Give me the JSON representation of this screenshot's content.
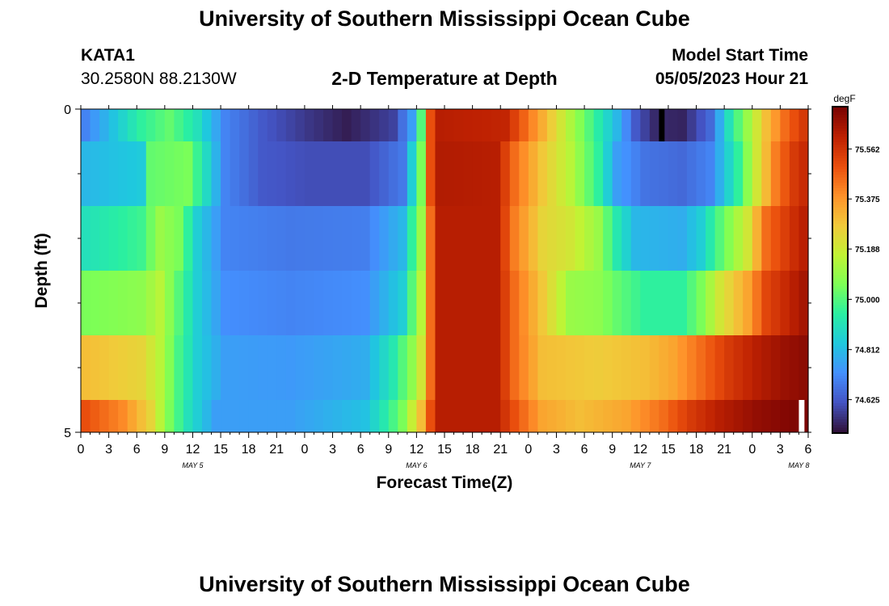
{
  "header": {
    "title": "University of Southern Mississippi Ocean Cube",
    "station": "KATA1",
    "coordinates": "30.2580N  88.2130W",
    "chart_title": "2-D Temperature at Depth",
    "model_start_label": "Model Start Time",
    "model_start_value": "05/05/2023 Hour 21"
  },
  "footer": {
    "title": "University of Southern Mississippi Ocean Cube"
  },
  "colors": {
    "colormap": [
      "#30123b",
      "#4454c4",
      "#4490fe",
      "#1fc8de",
      "#29efa2",
      "#7dff56",
      "#c1f334",
      "#f1ca3a",
      "#fe922a",
      "#ea4f0d",
      "#be2102",
      "#7a0403"
    ]
  },
  "chart_data": {
    "type": "heatmap",
    "xlabel": "Forecast Time(Z)",
    "ylabel": "Depth (ft)",
    "x_start_hour": 0,
    "x_step_hours": 1,
    "x_ticks": [
      "0",
      "3",
      "6",
      "9",
      "12",
      "15",
      "18",
      "21",
      "0",
      "3",
      "6",
      "9",
      "12",
      "15",
      "18",
      "21",
      "0",
      "3",
      "6",
      "9",
      "12",
      "15",
      "18",
      "21",
      "0",
      "3",
      "6"
    ],
    "date_labels": [
      {
        "label": "MAY 5",
        "hour": 12
      },
      {
        "label": "MAY 6",
        "hour": 36
      },
      {
        "label": "MAY 7",
        "hour": 60
      },
      {
        "label": "MAY 8",
        "hour": 77
      }
    ],
    "y_ticks": [
      {
        "label": "0",
        "depth": 0
      },
      {
        "label": "5",
        "depth": 5
      }
    ],
    "ylim": [
      0,
      5
    ],
    "colorbar": {
      "unit": "degF",
      "min": 74.5,
      "max": 75.72,
      "ticks": [
        "75.562",
        "75.375",
        "75.188",
        "75.000",
        "74.812",
        "74.625"
      ]
    },
    "layers": [
      {
        "depth_top": 0,
        "depth_bottom": 0.5,
        "keys": [
          [
            0,
            74.7
          ],
          [
            6,
            74.95
          ],
          [
            9,
            75.02
          ],
          [
            12,
            74.9
          ],
          [
            15,
            74.7
          ],
          [
            19,
            74.62
          ],
          [
            24,
            74.56
          ],
          [
            28,
            74.52
          ],
          [
            33,
            74.58
          ],
          [
            35,
            74.75
          ],
          [
            36,
            75.0
          ],
          [
            37,
            75.5
          ],
          [
            38,
            75.62
          ],
          [
            45,
            75.6
          ],
          [
            48,
            75.4
          ],
          [
            51,
            75.2
          ],
          [
            54,
            75.0
          ],
          [
            57,
            74.8
          ],
          [
            59,
            74.62
          ],
          [
            61,
            74.54
          ],
          [
            64,
            74.53
          ],
          [
            67,
            74.65
          ],
          [
            69,
            74.9
          ],
          [
            71,
            75.1
          ],
          [
            73,
            75.3
          ],
          [
            75,
            75.45
          ],
          [
            78,
            75.6
          ]
        ]
      },
      {
        "depth_top": 0.5,
        "depth_bottom": 1.5,
        "keys": [
          [
            0,
            74.8
          ],
          [
            6,
            74.84
          ],
          [
            7,
            75.02
          ],
          [
            11,
            75.05
          ],
          [
            13,
            74.88
          ],
          [
            15,
            74.7
          ],
          [
            19,
            74.62
          ],
          [
            24,
            74.6
          ],
          [
            30,
            74.6
          ],
          [
            34,
            74.68
          ],
          [
            35,
            74.85
          ],
          [
            36,
            75.05
          ],
          [
            37,
            75.5
          ],
          [
            38,
            75.63
          ],
          [
            44,
            75.62
          ],
          [
            46,
            75.45
          ],
          [
            49,
            75.28
          ],
          [
            52,
            75.15
          ],
          [
            55,
            74.95
          ],
          [
            57,
            74.75
          ],
          [
            60,
            74.67
          ],
          [
            64,
            74.65
          ],
          [
            67,
            74.7
          ],
          [
            70,
            74.95
          ],
          [
            72,
            75.2
          ],
          [
            74,
            75.42
          ],
          [
            76,
            75.55
          ],
          [
            78,
            75.62
          ]
        ]
      },
      {
        "depth_top": 1.5,
        "depth_bottom": 2.5,
        "keys": [
          [
            0,
            74.9
          ],
          [
            6,
            74.97
          ],
          [
            8,
            75.1
          ],
          [
            10,
            75.05
          ],
          [
            12,
            74.85
          ],
          [
            15,
            74.7
          ],
          [
            22,
            74.68
          ],
          [
            30,
            74.69
          ],
          [
            34,
            74.8
          ],
          [
            35,
            74.95
          ],
          [
            36,
            75.1
          ],
          [
            37,
            75.45
          ],
          [
            38,
            75.62
          ],
          [
            44,
            75.62
          ],
          [
            46,
            75.42
          ],
          [
            49,
            75.25
          ],
          [
            52,
            75.2
          ],
          [
            55,
            75.1
          ],
          [
            57,
            74.92
          ],
          [
            59,
            74.8
          ],
          [
            64,
            74.78
          ],
          [
            66,
            74.85
          ],
          [
            68,
            75.0
          ],
          [
            71,
            75.2
          ],
          [
            73,
            75.45
          ],
          [
            76,
            75.58
          ],
          [
            78,
            75.65
          ]
        ]
      },
      {
        "depth_top": 2.5,
        "depth_bottom": 3.5,
        "keys": [
          [
            0,
            75.05
          ],
          [
            6,
            75.08
          ],
          [
            8,
            75.15
          ],
          [
            10,
            75.0
          ],
          [
            12,
            74.85
          ],
          [
            15,
            74.72
          ],
          [
            22,
            74.7
          ],
          [
            30,
            74.72
          ],
          [
            34,
            74.85
          ],
          [
            35,
            75.0
          ],
          [
            36,
            75.15
          ],
          [
            37,
            75.45
          ],
          [
            38,
            75.62
          ],
          [
            44,
            75.62
          ],
          [
            46,
            75.45
          ],
          [
            49,
            75.28
          ],
          [
            52,
            75.1
          ],
          [
            55,
            75.08
          ],
          [
            57,
            75.02
          ],
          [
            60,
            74.95
          ],
          [
            64,
            74.95
          ],
          [
            66,
            75.05
          ],
          [
            68,
            75.2
          ],
          [
            71,
            75.35
          ],
          [
            73,
            75.52
          ],
          [
            76,
            75.62
          ],
          [
            78,
            75.68
          ]
        ]
      },
      {
        "depth_top": 3.5,
        "depth_bottom": 4.5,
        "keys": [
          [
            0,
            75.3
          ],
          [
            6,
            75.25
          ],
          [
            8,
            75.15
          ],
          [
            10,
            74.98
          ],
          [
            12,
            74.85
          ],
          [
            15,
            74.75
          ],
          [
            22,
            74.74
          ],
          [
            30,
            74.78
          ],
          [
            33,
            74.92
          ],
          [
            35,
            75.08
          ],
          [
            36,
            75.2
          ],
          [
            37,
            75.45
          ],
          [
            38,
            75.62
          ],
          [
            44,
            75.62
          ],
          [
            46,
            75.45
          ],
          [
            49,
            75.3
          ],
          [
            55,
            75.27
          ],
          [
            60,
            75.3
          ],
          [
            63,
            75.35
          ],
          [
            66,
            75.45
          ],
          [
            69,
            75.55
          ],
          [
            72,
            75.62
          ],
          [
            75,
            75.67
          ],
          [
            78,
            75.7
          ]
        ]
      },
      {
        "depth_top": 4.5,
        "depth_bottom": 5.0,
        "keys": [
          [
            0,
            75.5
          ],
          [
            4,
            75.4
          ],
          [
            7,
            75.25
          ],
          [
            9,
            75.05
          ],
          [
            11,
            74.9
          ],
          [
            14,
            74.75
          ],
          [
            22,
            74.75
          ],
          [
            30,
            74.82
          ],
          [
            32,
            74.92
          ],
          [
            34,
            75.05
          ],
          [
            36,
            75.3
          ],
          [
            37,
            75.5
          ],
          [
            38,
            75.62
          ],
          [
            44,
            75.62
          ],
          [
            46,
            75.5
          ],
          [
            49,
            75.35
          ],
          [
            53,
            75.3
          ],
          [
            58,
            75.35
          ],
          [
            62,
            75.45
          ],
          [
            65,
            75.55
          ],
          [
            68,
            75.62
          ],
          [
            72,
            75.68
          ],
          [
            77,
            75.72
          ]
        ]
      }
    ],
    "missing_cells": [
      {
        "hour": 62,
        "layer": 0,
        "color": "#000000"
      },
      {
        "hour": 77,
        "layer": 5,
        "color": "#ffffff"
      }
    ]
  }
}
